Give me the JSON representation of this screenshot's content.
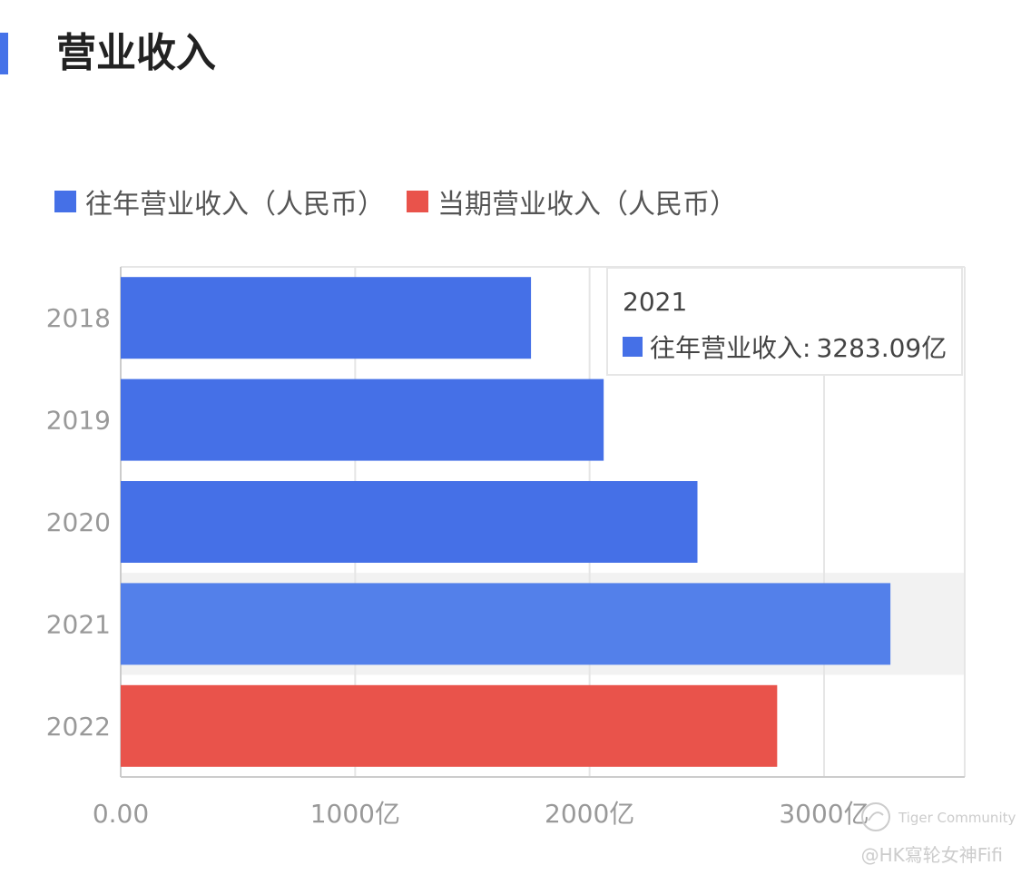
{
  "page": {
    "title": "营业收入"
  },
  "colors": {
    "past": "#4570e7",
    "past_highlight": "#5380ea",
    "current": "#e9534b",
    "accent": "#4572e8"
  },
  "legend": [
    {
      "label": "往年营业收入（人民币）",
      "color": "#4570e7"
    },
    {
      "label": "当期营业收入（人民币）",
      "color": "#e9534b"
    }
  ],
  "tooltip": {
    "title": "2021",
    "series_label": "往年营业收入:",
    "value_text": "3283.09亿"
  },
  "watermark": {
    "brand": "Tiger Community",
    "author": "@HK寫轮女神Fifi"
  },
  "chart_data": {
    "type": "bar",
    "orientation": "horizontal",
    "categories": [
      "2018",
      "2019",
      "2020",
      "2021",
      "2022"
    ],
    "series": [
      {
        "name": "往年营业收入（人民币）",
        "values": [
          1750,
          2060,
          2460,
          3283.09,
          null
        ]
      },
      {
        "name": "当期营业收入（人民币）",
        "values": [
          null,
          null,
          null,
          null,
          2800
        ]
      }
    ],
    "xlim": [
      0,
      3600
    ],
    "xticks": [
      0,
      1000,
      2000,
      3000
    ],
    "xtick_labels": [
      "0.00",
      "1000亿",
      "2000亿",
      "3000亿"
    ],
    "highlighted_category": "2021",
    "grid": true,
    "legend_position": "top-left"
  }
}
